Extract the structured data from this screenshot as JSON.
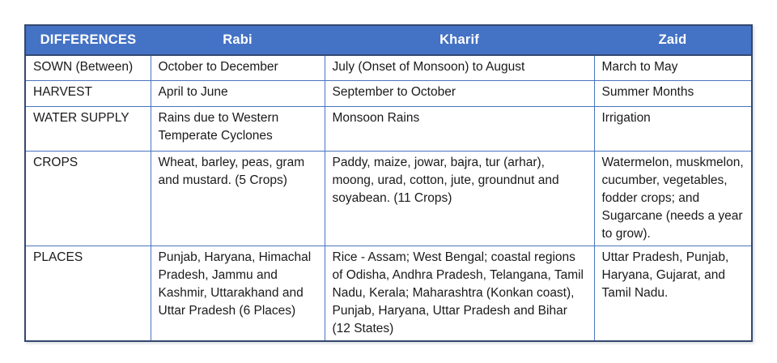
{
  "table": {
    "headers": [
      "DIFFERENCES",
      "Rabi",
      "Kharif",
      "Zaid"
    ],
    "rows": [
      [
        "SOWN (Between)",
        "October to December",
        "July (Onset of Monsoon) to August",
        "March to May"
      ],
      [
        "HARVEST",
        "April to June",
        "September to October",
        "Summer Months"
      ],
      [
        "WATER SUPPLY",
        "Rains due to Western Temperate Cyclones",
        "Monsoon Rains",
        "Irrigation"
      ],
      [
        "CROPS",
        "Wheat, barley, peas, gram and mustard. (5 Crops)",
        "Paddy, maize, jowar, bajra, tur (arhar), moong, urad, cotton, jute, groundnut and soyabean. (11 Crops)",
        "Watermelon, muskmelon, cucumber, vegetables, fodder crops; and Sugarcane (needs a year to grow)."
      ],
      [
        "PLACES",
        "Punjab, Haryana, Himachal Pradesh, Jammu and Kashmir, Uttarakhand and Uttar Pradesh (6 Places)",
        "Rice - Assam; West Bengal; coastal regions of Odisha, Andhra Pradesh, Telangana, Tamil Nadu, Kerala; Maharashtra (Konkan coast), Punjab, Haryana, Uttar Pradesh and Bihar (12 States)",
        "Uttar Pradesh, Punjab, Haryana, Gujarat, and Tamil Nadu."
      ]
    ]
  },
  "colors": {
    "header_bg": "#4472c4",
    "header_text": "#ffffff",
    "grid_border": "#4a74c0",
    "outer_border": "#34486e",
    "body_text": "#1a1a1a"
  }
}
